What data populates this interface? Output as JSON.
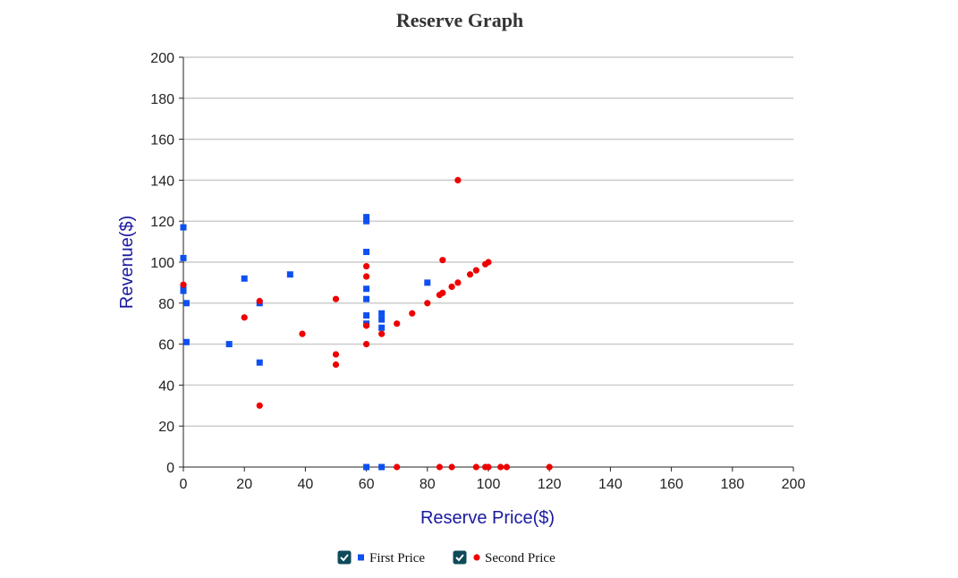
{
  "chart_data": {
    "type": "scatter",
    "title": "Reserve Graph",
    "xlabel": "Reserve Price($)",
    "ylabel": "Revenue($)",
    "xlim": [
      0,
      200
    ],
    "ylim": [
      0,
      200
    ],
    "x_ticks": [
      0,
      20,
      40,
      60,
      80,
      100,
      120,
      140,
      160,
      180,
      200
    ],
    "y_ticks": [
      0,
      20,
      40,
      60,
      80,
      100,
      120,
      140,
      160,
      180,
      200
    ],
    "grid": "horizontal",
    "legend_position": "bottom",
    "series": [
      {
        "name": "First Price",
        "marker": "square",
        "color": "#0d4ff0",
        "checked": true,
        "points": [
          [
            0,
            117
          ],
          [
            0,
            102
          ],
          [
            0,
            88
          ],
          [
            0,
            86
          ],
          [
            1,
            80
          ],
          [
            1,
            61
          ],
          [
            15,
            60
          ],
          [
            20,
            92
          ],
          [
            25,
            80
          ],
          [
            25,
            51
          ],
          [
            35,
            94
          ],
          [
            60,
            122
          ],
          [
            60,
            120
          ],
          [
            60,
            105
          ],
          [
            60,
            87
          ],
          [
            60,
            82
          ],
          [
            60,
            74
          ],
          [
            60,
            70
          ],
          [
            60,
            0
          ],
          [
            65,
            75
          ],
          [
            65,
            72
          ],
          [
            65,
            68
          ],
          [
            65,
            0
          ],
          [
            80,
            90
          ]
        ]
      },
      {
        "name": "Second Price",
        "marker": "circle",
        "color": "#ee0000",
        "checked": true,
        "points": [
          [
            0,
            89
          ],
          [
            20,
            73
          ],
          [
            25,
            81
          ],
          [
            25,
            30
          ],
          [
            39,
            65
          ],
          [
            50,
            82
          ],
          [
            50,
            55
          ],
          [
            50,
            50
          ],
          [
            60,
            98
          ],
          [
            60,
            93
          ],
          [
            60,
            69
          ],
          [
            60,
            60
          ],
          [
            65,
            65
          ],
          [
            70,
            70
          ],
          [
            70,
            0
          ],
          [
            75,
            75
          ],
          [
            80,
            80
          ],
          [
            84,
            84
          ],
          [
            84,
            0
          ],
          [
            85,
            101
          ],
          [
            85,
            85
          ],
          [
            88,
            88
          ],
          [
            88,
            0
          ],
          [
            90,
            140
          ],
          [
            90,
            90
          ],
          [
            94,
            94
          ],
          [
            96,
            96
          ],
          [
            96,
            0
          ],
          [
            99,
            99
          ],
          [
            99,
            0
          ],
          [
            100,
            100
          ],
          [
            100,
            0
          ],
          [
            104,
            0
          ],
          [
            106,
            0
          ],
          [
            120,
            0
          ]
        ]
      }
    ]
  }
}
